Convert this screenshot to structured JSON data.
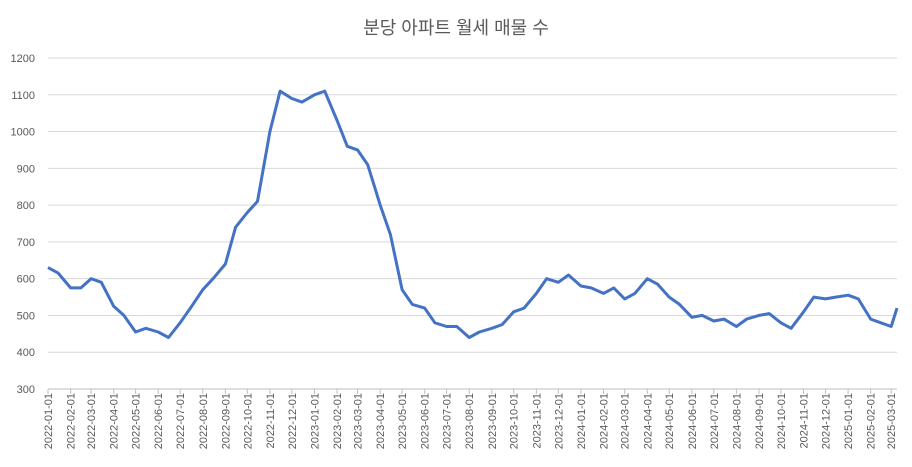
{
  "chart_data": {
    "type": "line",
    "title": "분당 아파트 월세 매물 수",
    "x": [
      "2022-01-01",
      "2022-01-15",
      "2022-02-01",
      "2022-02-15",
      "2022-03-01",
      "2022-03-15",
      "2022-04-01",
      "2022-04-15",
      "2022-05-01",
      "2022-05-15",
      "2022-06-01",
      "2022-06-15",
      "2022-07-01",
      "2022-07-15",
      "2022-08-01",
      "2022-08-15",
      "2022-09-01",
      "2022-09-15",
      "2022-10-01",
      "2022-10-15",
      "2022-11-01",
      "2022-11-15",
      "2022-12-01",
      "2022-12-15",
      "2023-01-01",
      "2023-01-15",
      "2023-02-01",
      "2023-02-15",
      "2023-03-01",
      "2023-03-15",
      "2023-04-01",
      "2023-04-15",
      "2023-05-01",
      "2023-05-15",
      "2023-06-01",
      "2023-06-15",
      "2023-07-01",
      "2023-07-15",
      "2023-08-01",
      "2023-08-15",
      "2023-09-01",
      "2023-09-15",
      "2023-10-01",
      "2023-10-15",
      "2023-11-01",
      "2023-11-15",
      "2023-12-01",
      "2023-12-15",
      "2024-01-01",
      "2024-01-15",
      "2024-02-01",
      "2024-02-15",
      "2024-03-01",
      "2024-03-15",
      "2024-04-01",
      "2024-04-15",
      "2024-05-01",
      "2024-05-15",
      "2024-06-01",
      "2024-06-15",
      "2024-07-01",
      "2024-07-15",
      "2024-08-01",
      "2024-08-15",
      "2024-09-01",
      "2024-09-15",
      "2024-10-01",
      "2024-10-15",
      "2024-11-01",
      "2024-11-15",
      "2024-12-01",
      "2024-12-15",
      "2025-01-01",
      "2025-01-15",
      "2025-02-01",
      "2025-02-15",
      "2025-03-01",
      "2025-03-09"
    ],
    "series": [
      {
        "name": "월세 매물 수",
        "color": "#4472c4",
        "values": [
          630,
          615,
          575,
          575,
          600,
          590,
          525,
          500,
          455,
          465,
          455,
          440,
          480,
          520,
          570,
          600,
          640,
          740,
          780,
          810,
          1000,
          1110,
          1090,
          1080,
          1100,
          1110,
          1030,
          960,
          950,
          910,
          800,
          720,
          570,
          530,
          520,
          480,
          470,
          470,
          440,
          455,
          465,
          475,
          510,
          520,
          560,
          600,
          590,
          610,
          580,
          575,
          560,
          575,
          545,
          560,
          600,
          585,
          550,
          530,
          495,
          500,
          485,
          490,
          470,
          490,
          500,
          505,
          480,
          465,
          510,
          550,
          545,
          550,
          555,
          545,
          490,
          480,
          470,
          520
        ]
      }
    ],
    "xlim": [
      "2022-01-01",
      "2025-03-09"
    ],
    "xticks": [
      "2022-01-01",
      "2022-02-01",
      "2022-03-01",
      "2022-04-01",
      "2022-05-01",
      "2022-06-01",
      "2022-07-01",
      "2022-08-01",
      "2022-09-01",
      "2022-10-01",
      "2022-11-01",
      "2022-12-01",
      "2023-01-01",
      "2023-02-01",
      "2023-03-01",
      "2023-04-01",
      "2023-05-01",
      "2023-06-01",
      "2023-07-01",
      "2023-08-01",
      "2023-09-01",
      "2023-10-01",
      "2023-11-01",
      "2023-12-01",
      "2024-01-01",
      "2024-02-01",
      "2024-03-01",
      "2024-04-01",
      "2024-05-01",
      "2024-06-01",
      "2024-07-01",
      "2024-08-01",
      "2024-09-01",
      "2024-10-01",
      "2024-11-01",
      "2024-12-01",
      "2025-01-01",
      "2025-02-01",
      "2025-03-01"
    ],
    "ylim": [
      300,
      1200
    ],
    "yticks": [
      300,
      400,
      500,
      600,
      700,
      800,
      900,
      1000,
      1100,
      1200
    ],
    "grid": true
  }
}
